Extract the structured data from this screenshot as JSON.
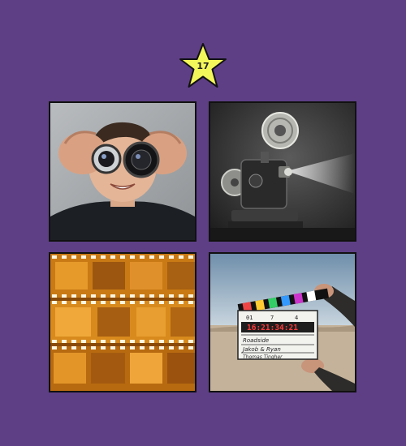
{
  "level_badge": {
    "number": "17",
    "color": "#f4f75a",
    "icon": "star-icon"
  },
  "tiles": [
    {
      "name": "person-with-lenses",
      "subject": "photo"
    },
    {
      "name": "film-projector",
      "subject": "photo"
    },
    {
      "name": "film-strips",
      "subject": "photo"
    },
    {
      "name": "clapperboard",
      "subject": "photo"
    }
  ],
  "clapperboard": {
    "title": "Roadside",
    "names": "Jakob & Ryan",
    "credit": "Thomas Tingher",
    "timecode": "16:21:34:21",
    "roll": "01",
    "scene": "7",
    "take": "4"
  },
  "colors": {
    "background": "#5e3f86",
    "star": "#f4f75a",
    "border": "#111111"
  }
}
